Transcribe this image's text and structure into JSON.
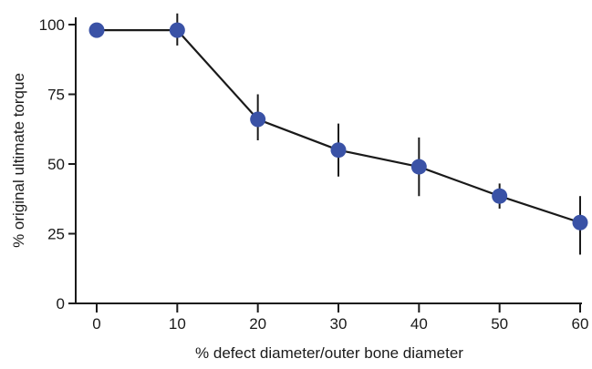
{
  "chart_data": {
    "type": "line",
    "title": "",
    "xlabel": "% defect diameter/outer bone diameter",
    "ylabel": "% original ultimate torque",
    "xlim": [
      0,
      60
    ],
    "ylim": [
      0,
      100
    ],
    "x_ticks": [
      "0",
      "10",
      "20",
      "30",
      "40",
      "50",
      "60"
    ],
    "y_ticks": [
      "0",
      "25",
      "50",
      "75",
      "100"
    ],
    "grid": false,
    "legend": "none",
    "colors": {
      "marker": "#3a52a6",
      "line": "#1a1a1a",
      "error_bar": "#1a1a1a",
      "axis": "#1a1a1a"
    },
    "series": [
      {
        "x": [
          0,
          10,
          20,
          30,
          40,
          50,
          60
        ],
        "y": [
          98,
          98,
          66,
          55,
          49,
          38.5,
          29
        ],
        "y_err_low": [
          98,
          92.5,
          58.5,
          45.5,
          38.5,
          34,
          17.5
        ],
        "y_err_high": [
          98,
          104,
          75,
          64.5,
          59.5,
          43,
          38.5
        ]
      }
    ]
  }
}
